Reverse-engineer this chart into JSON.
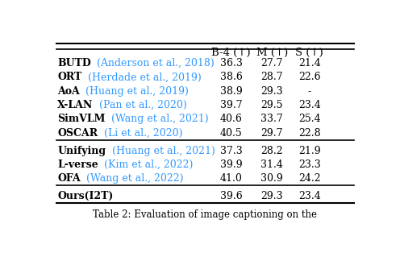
{
  "columns": [
    "B-4 (↑)",
    "M (↑)",
    "S (↑)"
  ],
  "groups": [
    {
      "rows": [
        {
          "method": "BUTD",
          "cite": "(Anderson et al., 2018)",
          "b4": "36.3",
          "m": "27.7",
          "s": "21.4"
        },
        {
          "method": "ORT",
          "cite": "(Herdade et al., 2019)",
          "b4": "38.6",
          "m": "28.7",
          "s": "22.6"
        },
        {
          "method": "AoA",
          "cite": "(Huang et al., 2019)",
          "b4": "38.9",
          "m": "29.3",
          "s": "-"
        },
        {
          "method": "X-LAN",
          "cite": "(Pan et al., 2020)",
          "b4": "39.7",
          "m": "29.5",
          "s": "23.4"
        },
        {
          "method": "SimVLM",
          "cite": "(Wang et al., 2021)",
          "b4": "40.6",
          "m": "33.7",
          "s": "25.4"
        },
        {
          "method": "OSCAR",
          "cite": "(Li et al., 2020)",
          "b4": "40.5",
          "m": "29.7",
          "s": "22.8"
        }
      ]
    },
    {
      "rows": [
        {
          "method": "Unifying",
          "cite": "(Huang et al., 2021)",
          "b4": "37.3",
          "m": "28.2",
          "s": "21.9"
        },
        {
          "method": "L-verse",
          "cite": "(Kim et al., 2022)",
          "b4": "39.9",
          "m": "31.4",
          "s": "23.3"
        },
        {
          "method": "OFA",
          "cite": "(Wang et al., 2022)",
          "b4": "41.0",
          "m": "30.9",
          "s": "24.2"
        }
      ]
    },
    {
      "rows": [
        {
          "method": "Ours(I2T)",
          "cite": "",
          "b4": "39.6",
          "m": "29.3",
          "s": "23.4"
        }
      ]
    }
  ],
  "cite_color": "#3399ff",
  "method_color": "#000000",
  "value_color": "#000000",
  "bg_color": "#ffffff",
  "header_color": "#000000",
  "font_size": 9.0,
  "header_font_size": 9.5,
  "caption": "Table 2: Evaluation of image captioning on the"
}
